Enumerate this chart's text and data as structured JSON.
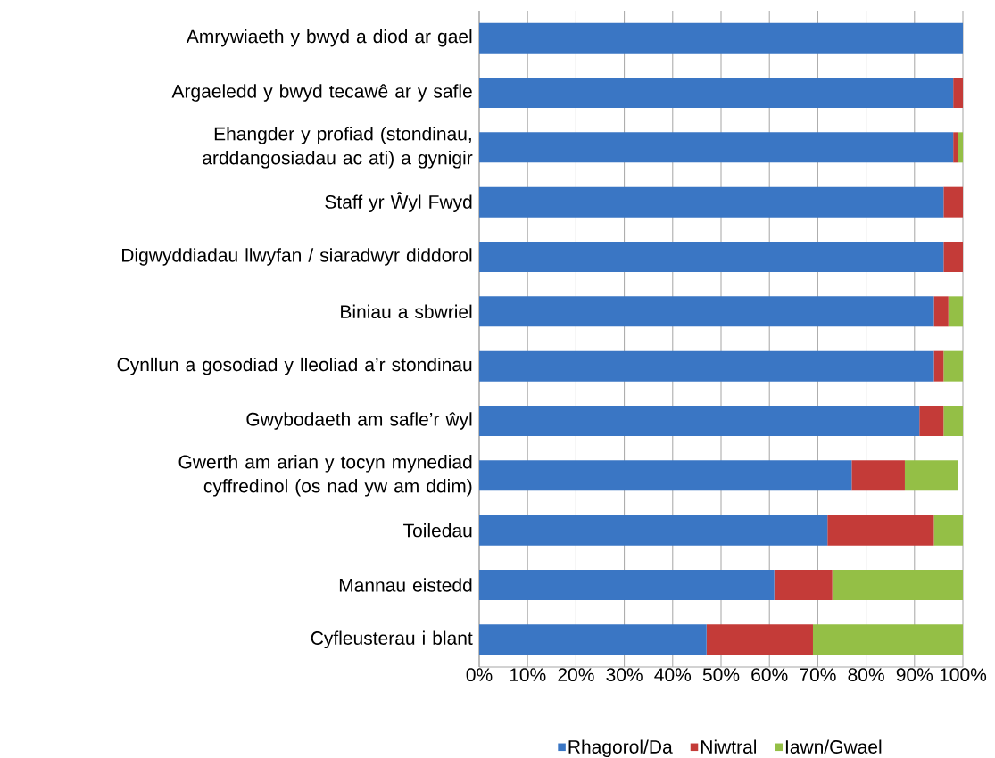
{
  "chart_data": {
    "type": "bar",
    "orientation": "horizontal",
    "stacked": true,
    "categories": [
      "Amrywiaeth y bwyd a diod ar gael",
      "Argaeledd y bwyd tecawê ar y safle",
      "Ehangder y profiad (stondinau, arddangosiadau ac ati) a gynigir",
      "Staff yr Ŵyl Fwyd",
      "Digwyddiadau llwyfan / siaradwyr diddorol",
      "Biniau a sbwriel",
      "Cynllun a gosodiad y lleoliad a’r stondinau",
      "Gwybodaeth am safle’r ŵyl",
      "Gwerth am arian y tocyn mynediad cyffredinol (os nad yw am ddim)",
      "Toiledau",
      "Mannau eistedd",
      "Cyfleusterau i blant"
    ],
    "series": [
      {
        "name": "Rhagorol/Da",
        "color": "#3a76c4",
        "values": [
          100,
          98,
          98,
          96,
          96,
          94,
          94,
          91,
          77,
          72,
          61,
          47
        ]
      },
      {
        "name": "Niwtral",
        "color": "#c43b38",
        "values": [
          0,
          2,
          1,
          4,
          4,
          3,
          2,
          5,
          11,
          22,
          12,
          22
        ]
      },
      {
        "name": "Iawn/Gwael",
        "color": "#94bf46",
        "values": [
          0,
          0,
          1,
          0,
          0,
          3,
          4,
          4,
          11,
          6,
          27,
          31
        ]
      }
    ],
    "xlim": [
      0,
      100
    ],
    "xticks": [
      {
        "value": 0,
        "label": "0%"
      },
      {
        "value": 10,
        "label": "10%"
      },
      {
        "value": 20,
        "label": "20%"
      },
      {
        "value": 30,
        "label": "30%"
      },
      {
        "value": 40,
        "label": "40%"
      },
      {
        "value": 50,
        "label": "50%"
      },
      {
        "value": 60,
        "label": "60%"
      },
      {
        "value": 70,
        "label": "70%"
      },
      {
        "value": 80,
        "label": "80%"
      },
      {
        "value": 90,
        "label": "90%"
      },
      {
        "value": 100,
        "label": "100%"
      }
    ],
    "grid": "x",
    "legend": "bottom"
  }
}
